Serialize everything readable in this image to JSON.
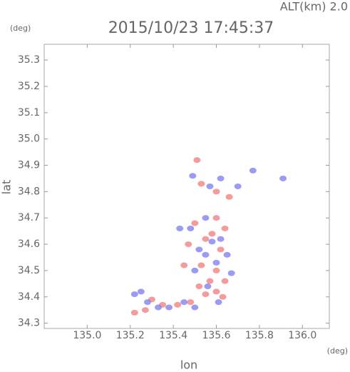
{
  "chart_data": {
    "type": "scatter",
    "title": "2015/10/23 17:45:37",
    "annotation": "ALT(km) 2.0",
    "y_unit": "(deg)",
    "x_unit": "(deg)",
    "xlabel": "lon",
    "ylabel": "lat",
    "xlim": [
      134.8,
      136.125
    ],
    "ylim": [
      34.28,
      35.36
    ],
    "xticks": [
      {
        "value": 135,
        "label": "135.0"
      },
      135.2,
      135.4,
      135.6,
      135.8,
      {
        "value": 136,
        "label": "136.0"
      }
    ],
    "yticks": [
      34.3,
      34.4,
      34.5,
      34.6,
      34.7,
      34.8,
      34.9,
      {
        "value": 35,
        "label": "35.0"
      },
      35.1,
      35.2,
      35.3
    ],
    "series": [
      {
        "color": "#f07a7a",
        "x": [
          135.51,
          135.53,
          135.6,
          135.66,
          135.58,
          135.5,
          135.55,
          135.62,
          135.47,
          135.53,
          135.6,
          135.57,
          135.64,
          135.55,
          135.6,
          135.63,
          135.52,
          135.48,
          135.42,
          135.35,
          135.27,
          135.22,
          135.3,
          135.64,
          135.6,
          135.45
        ],
        "values": [
          34.92,
          34.83,
          34.8,
          34.78,
          34.64,
          34.68,
          34.62,
          34.58,
          34.6,
          34.52,
          34.5,
          34.46,
          34.46,
          34.41,
          34.42,
          34.4,
          34.44,
          34.38,
          34.37,
          34.37,
          34.35,
          34.34,
          34.39,
          34.66,
          34.7,
          34.52
        ]
      },
      {
        "color": "#7a7af0",
        "x": [
          135.49,
          135.62,
          135.57,
          135.7,
          135.77,
          135.55,
          135.48,
          135.58,
          135.52,
          135.62,
          135.55,
          135.5,
          135.6,
          135.67,
          135.56,
          135.61,
          135.5,
          135.45,
          135.38,
          135.33,
          135.25,
          135.22,
          135.28,
          135.43,
          135.65,
          135.91
        ],
        "values": [
          34.86,
          34.85,
          34.82,
          34.82,
          34.88,
          34.7,
          34.66,
          34.61,
          34.58,
          34.62,
          34.56,
          34.5,
          34.53,
          34.49,
          34.44,
          34.38,
          34.36,
          34.38,
          34.36,
          34.36,
          34.42,
          34.41,
          34.38,
          34.66,
          34.56,
          34.85
        ]
      }
    ]
  }
}
